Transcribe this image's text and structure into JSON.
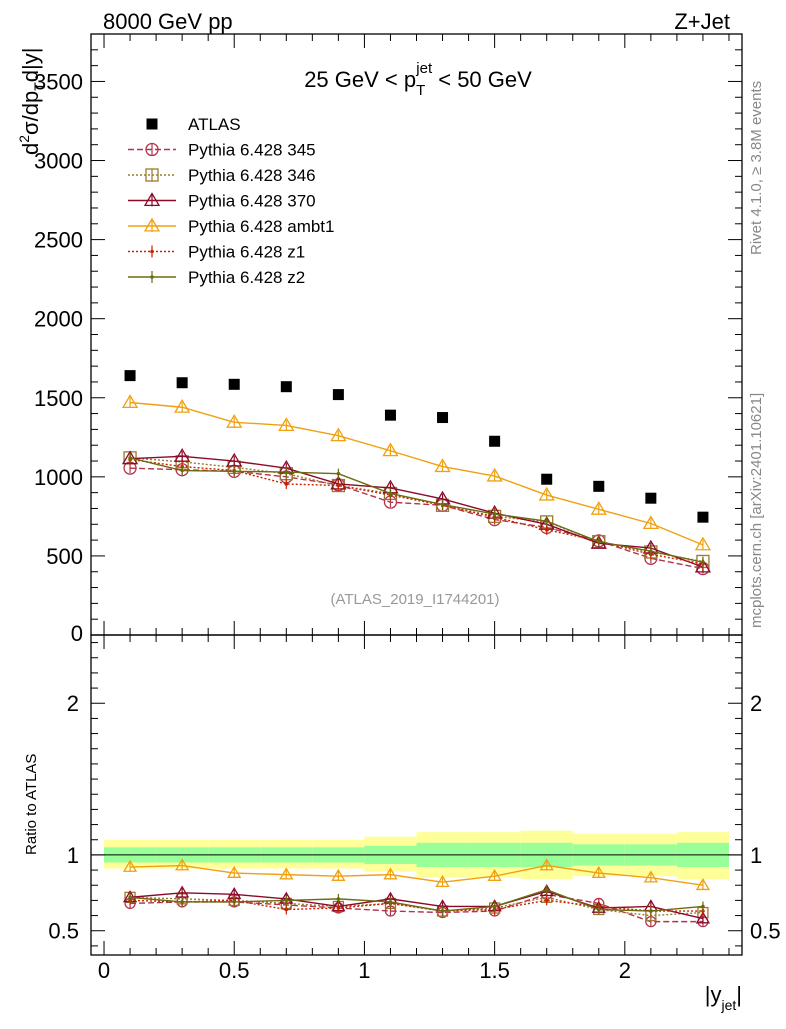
{
  "header": {
    "left": "8000 GeV pp",
    "right": "Z+Jet"
  },
  "side_text": {
    "rivet": "Rivet 4.1.0, ≥ 3.8M events",
    "mcplots": "mcplots.cern.ch [arXiv:2401.10621]"
  },
  "watermark": "(ATLAS_2019_I1744201)",
  "chart_data": [
    {
      "type": "scatter",
      "panel": "main",
      "title": "25 GeV < p_T^jet < 50 GeV",
      "title_parts": {
        "pre": "25 GeV < p",
        "sub": "T",
        "sup": "jet",
        "post": " < 50 GeV"
      },
      "ylabel": "d²σ/dp_T d|y|",
      "ylabel_parts": {
        "a": "d",
        "a_sup": "2",
        "b": "σ/dp",
        "b_sub": "T",
        "c": "d|y|"
      },
      "xlim": [
        -0.05,
        2.45
      ],
      "ylim": [
        0,
        3800
      ],
      "yticks": [
        500,
        1000,
        1500,
        2000,
        2500,
        3000,
        3500
      ],
      "ytick_labels": [
        "500",
        "1000",
        "1500",
        "2000",
        "2500",
        "3000",
        "3500"
      ],
      "y_bottom_label": "0",
      "x": [
        0.1,
        0.3,
        0.5,
        0.7,
        0.9,
        1.1,
        1.3,
        1.5,
        1.7,
        1.9,
        2.1,
        2.3
      ],
      "series": [
        {
          "name": "ATLAS",
          "style": "data",
          "color": "#000000",
          "values": [
            1640,
            1595,
            1585,
            1570,
            1520,
            1390,
            1375,
            1225,
            985,
            940,
            865,
            745
          ]
        },
        {
          "name": "Pythia 6.428 345",
          "style": "open-circle",
          "dash": "6,3",
          "color": "#b3334d",
          "values": [
            1055,
            1045,
            1035,
            1000,
            950,
            840,
            820,
            730,
            680,
            595,
            485,
            420
          ]
        },
        {
          "name": "Pythia 6.428 346",
          "style": "open-square",
          "dash": "2,2",
          "color": "#9a7a2e",
          "values": [
            1120,
            1095,
            1060,
            1020,
            945,
            895,
            820,
            750,
            715,
            590,
            525,
            465
          ]
        },
        {
          "name": "Pythia 6.428 370",
          "style": "open-triangle",
          "dash": "",
          "color": "#8b0a2a",
          "values": [
            1115,
            1130,
            1100,
            1055,
            955,
            930,
            860,
            770,
            700,
            580,
            550,
            430
          ]
        },
        {
          "name": "Pythia 6.428 ambt1",
          "style": "open-triangle",
          "dash": "",
          "color": "#f0a010",
          "values": [
            1470,
            1440,
            1345,
            1325,
            1260,
            1165,
            1065,
            1005,
            885,
            795,
            705,
            570
          ]
        },
        {
          "name": "Pythia 6.428 z1",
          "style": "dot",
          "dash": "2,2",
          "color": "#cc2200",
          "values": [
            1110,
            1065,
            1040,
            955,
            945,
            885,
            820,
            745,
            665,
            595,
            510,
            450
          ]
        },
        {
          "name": "Pythia 6.428 z2",
          "style": "dot",
          "dash": "",
          "color": "#6b6b10",
          "values": [
            1120,
            1040,
            1035,
            1030,
            1020,
            895,
            825,
            765,
            720,
            590,
            530,
            460
          ]
        }
      ]
    },
    {
      "type": "scatter",
      "panel": "ratio",
      "ylabel": "Ratio to ATLAS",
      "xlabel": "|y_jet|",
      "xlabel_parts": {
        "pre": "|y",
        "sub": "jet",
        "post": "|"
      },
      "xlim": [
        -0.05,
        2.45
      ],
      "ylim": [
        0.34,
        2.45
      ],
      "yticks": [
        0.5,
        1,
        2
      ],
      "ytick_labels": [
        "0.5",
        "1",
        "2"
      ],
      "xticks": [
        0,
        0.5,
        1,
        1.5,
        2
      ],
      "xtick_labels": [
        "0",
        "0.5",
        "1",
        "1.5",
        "2"
      ],
      "bands": [
        {
          "x0": 0.0,
          "x1": 0.2,
          "stat": [
            0.95,
            1.05
          ],
          "total": [
            0.91,
            1.1
          ]
        },
        {
          "x0": 0.2,
          "x1": 0.4,
          "stat": [
            0.95,
            1.05
          ],
          "total": [
            0.91,
            1.1
          ]
        },
        {
          "x0": 0.4,
          "x1": 0.6,
          "stat": [
            0.95,
            1.05
          ],
          "total": [
            0.91,
            1.1
          ]
        },
        {
          "x0": 0.6,
          "x1": 0.8,
          "stat": [
            0.95,
            1.05
          ],
          "total": [
            0.91,
            1.1
          ]
        },
        {
          "x0": 0.8,
          "x1": 1.0,
          "stat": [
            0.95,
            1.05
          ],
          "total": [
            0.91,
            1.1
          ]
        },
        {
          "x0": 1.0,
          "x1": 1.2,
          "stat": [
            0.94,
            1.06
          ],
          "total": [
            0.89,
            1.12
          ]
        },
        {
          "x0": 1.2,
          "x1": 1.4,
          "stat": [
            0.92,
            1.08
          ],
          "total": [
            0.85,
            1.15
          ]
        },
        {
          "x0": 1.4,
          "x1": 1.6,
          "stat": [
            0.92,
            1.08
          ],
          "total": [
            0.85,
            1.15
          ]
        },
        {
          "x0": 1.6,
          "x1": 1.8,
          "stat": [
            0.92,
            1.08
          ],
          "total": [
            0.84,
            1.16
          ]
        },
        {
          "x0": 1.8,
          "x1": 2.0,
          "stat": [
            0.93,
            1.07
          ],
          "total": [
            0.86,
            1.14
          ]
        },
        {
          "x0": 2.0,
          "x1": 2.2,
          "stat": [
            0.93,
            1.07
          ],
          "total": [
            0.86,
            1.14
          ]
        },
        {
          "x0": 2.2,
          "x1": 2.4,
          "stat": [
            0.92,
            1.08
          ],
          "total": [
            0.84,
            1.15
          ]
        }
      ],
      "series": [
        {
          "name": "Pythia 6.428 345",
          "style": "open-circle",
          "dash": "6,3",
          "color": "#b3334d",
          "values": [
            0.68,
            0.69,
            0.69,
            0.67,
            0.65,
            0.63,
            0.62,
            0.63,
            0.74,
            0.68,
            0.56,
            0.56
          ]
        },
        {
          "name": "Pythia 6.428 346",
          "style": "open-square",
          "dash": "2,2",
          "color": "#9a7a2e",
          "values": [
            0.72,
            0.71,
            0.7,
            0.68,
            0.66,
            0.68,
            0.63,
            0.65,
            0.72,
            0.64,
            0.6,
            0.62
          ]
        },
        {
          "name": "Pythia 6.428 370",
          "style": "open-triangle",
          "dash": "",
          "color": "#8b0a2a",
          "values": [
            0.72,
            0.75,
            0.74,
            0.71,
            0.66,
            0.71,
            0.66,
            0.66,
            0.76,
            0.65,
            0.66,
            0.58
          ]
        },
        {
          "name": "Pythia 6.428 ambt1",
          "style": "open-triangle",
          "dash": "",
          "color": "#f0a010",
          "values": [
            0.92,
            0.93,
            0.88,
            0.87,
            0.86,
            0.87,
            0.82,
            0.86,
            0.93,
            0.88,
            0.85,
            0.8
          ]
        },
        {
          "name": "Pythia 6.428 z1",
          "style": "dot",
          "dash": "2,2",
          "color": "#cc2200",
          "values": [
            0.7,
            0.69,
            0.7,
            0.64,
            0.65,
            0.68,
            0.63,
            0.64,
            0.7,
            0.66,
            0.63,
            0.63
          ]
        },
        {
          "name": "Pythia 6.428 z2",
          "style": "dot",
          "dash": "",
          "color": "#6b6b10",
          "values": [
            0.72,
            0.69,
            0.69,
            0.7,
            0.71,
            0.69,
            0.63,
            0.66,
            0.77,
            0.64,
            0.63,
            0.66
          ]
        }
      ]
    }
  ]
}
